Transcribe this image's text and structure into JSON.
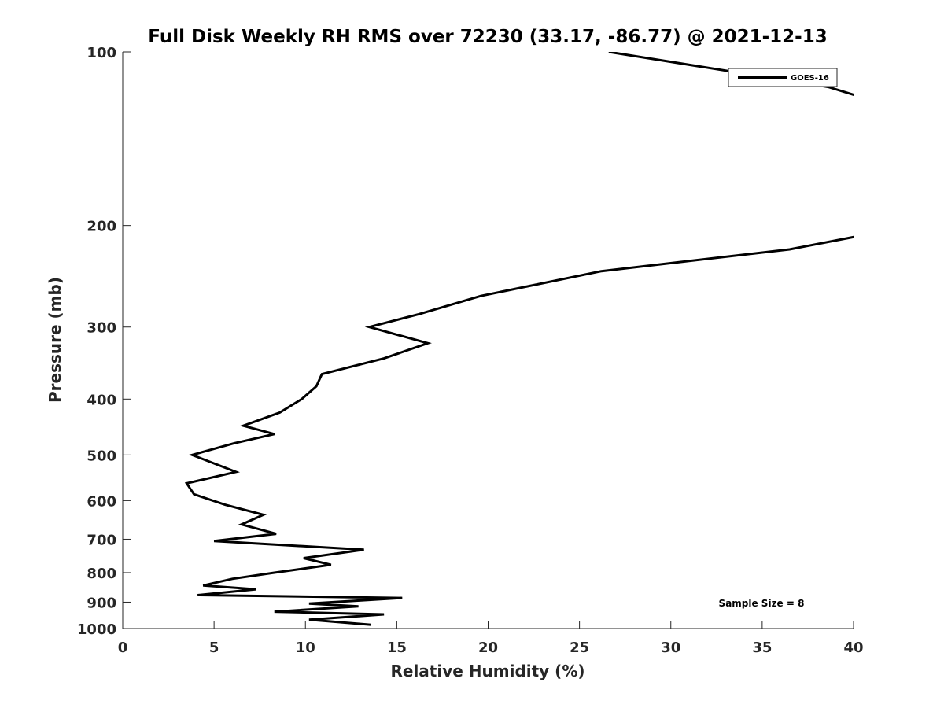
{
  "chart_data": {
    "type": "line",
    "title": "Full Disk Weekly RH RMS over 72230 (33.17, -86.77) @ 2021-12-13",
    "xlabel": "Relative Humidity (%)",
    "ylabel": "Pressure (mb)",
    "xlim": [
      0,
      40
    ],
    "ylim": [
      100,
      1000
    ],
    "yscale": "log",
    "yreversed": true,
    "x_ticks": [
      0,
      5,
      10,
      15,
      20,
      25,
      30,
      35,
      40
    ],
    "y_ticks": [
      100,
      200,
      300,
      400,
      500,
      600,
      700,
      800,
      900,
      1000
    ],
    "legend": {
      "location": "top-right",
      "entries": [
        "GOES-16"
      ]
    },
    "annotation": "Sample Size = 8",
    "series": [
      {
        "name": "GOES-16",
        "color": "#000000",
        "points": [
          [
            26.6,
            100
          ],
          [
            38.6,
            115
          ],
          [
            40.5,
            120
          ],
          [
            40.5,
            208
          ],
          [
            36.5,
            220
          ],
          [
            26.2,
            240
          ],
          [
            19.6,
            265
          ],
          [
            16.2,
            285
          ],
          [
            13.5,
            300
          ],
          [
            16.7,
            320
          ],
          [
            14.3,
            340
          ],
          [
            10.9,
            362
          ],
          [
            10.6,
            380
          ],
          [
            9.8,
            400
          ],
          [
            8.6,
            422
          ],
          [
            6.6,
            445
          ],
          [
            8.3,
            460
          ],
          [
            6.1,
            477
          ],
          [
            3.8,
            500
          ],
          [
            6.2,
            535
          ],
          [
            3.5,
            560
          ],
          [
            3.9,
            585
          ],
          [
            5.6,
            610
          ],
          [
            7.7,
            635
          ],
          [
            6.5,
            660
          ],
          [
            8.4,
            685
          ],
          [
            5.0,
            705
          ],
          [
            13.2,
            730
          ],
          [
            9.9,
            755
          ],
          [
            11.4,
            775
          ],
          [
            8.3,
            800
          ],
          [
            6.0,
            820
          ],
          [
            4.4,
            842
          ],
          [
            7.3,
            855
          ],
          [
            4.1,
            875
          ],
          [
            15.3,
            885
          ],
          [
            10.2,
            905
          ],
          [
            12.9,
            915
          ],
          [
            8.3,
            935
          ],
          [
            14.3,
            945
          ],
          [
            10.2,
            965
          ],
          [
            13.6,
            985
          ]
        ]
      }
    ]
  }
}
